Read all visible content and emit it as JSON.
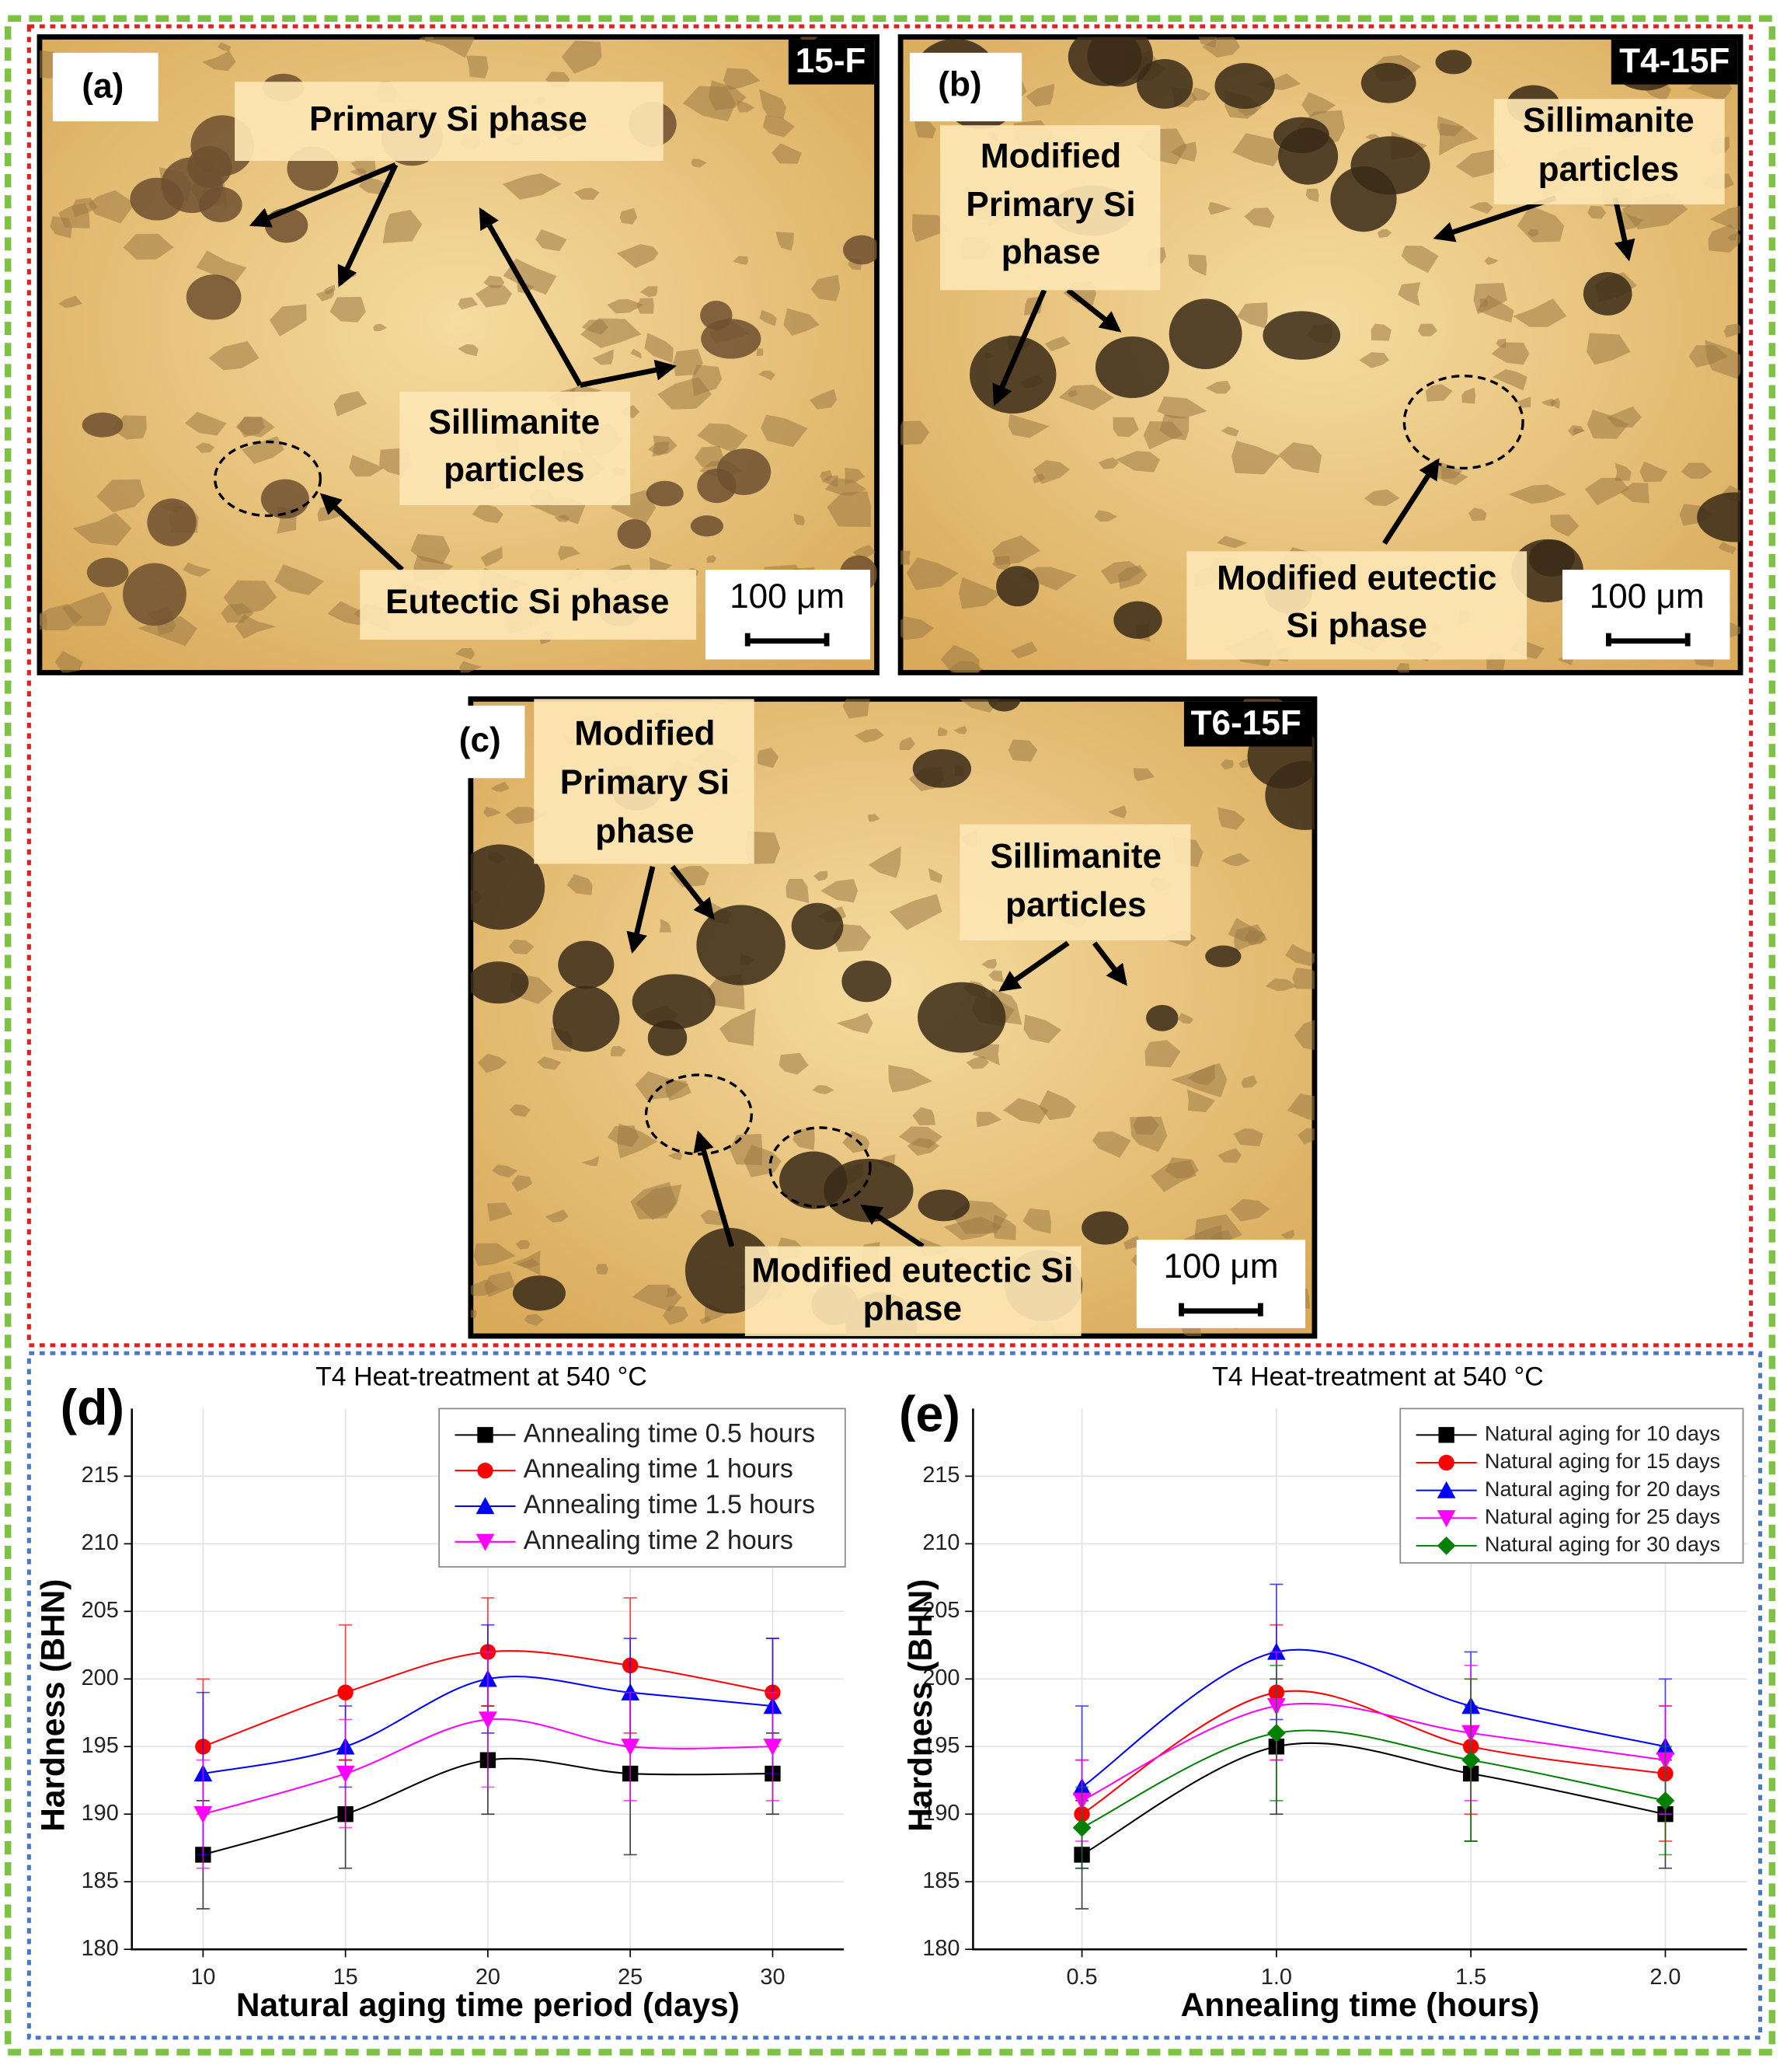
{
  "panels": [
    {
      "label": "(a)",
      "sample": "15-F",
      "annotations": [
        [
          "Primary Si phase"
        ],
        [
          "Sillimanite",
          "particles"
        ],
        [
          "Eutectic Si phase"
        ]
      ],
      "scale_bar": "100 μm"
    },
    {
      "label": "(b)",
      "sample": "T4-15F",
      "annotations": [
        [
          "Modified",
          "Primary Si",
          "phase"
        ],
        [
          "Sillimanite",
          "particles"
        ],
        [
          "Modified eutectic",
          "Si phase"
        ]
      ],
      "scale_bar": "100 μm"
    },
    {
      "label": "(c)",
      "sample": "T6-15F",
      "annotations": [
        [
          "Modified",
          "Primary Si",
          "phase"
        ],
        [
          "Sillimanite",
          "particles"
        ],
        [
          "Modified eutectic Si",
          "phase"
        ]
      ],
      "scale_bar": "100 μm"
    }
  ],
  "chart_data": [
    {
      "type": "line",
      "panel_label": "(d)",
      "title": "T4 Heat-treatment at 540 °C",
      "xlabel": "Natural aging time period (days)",
      "ylabel": "Hardness (BHN)",
      "x": [
        10,
        15,
        20,
        25,
        30
      ],
      "xlim": [
        7.5,
        32.5
      ],
      "xticks": [
        10,
        15,
        20,
        25,
        30
      ],
      "ylim": [
        180,
        220
      ],
      "yticks": [
        180,
        185,
        190,
        195,
        200,
        205,
        210,
        215
      ],
      "grid": true,
      "legend": "upper right",
      "series": [
        {
          "name": "Annealing time 0.5 hours",
          "color": "#000000",
          "marker": "square",
          "values": [
            187,
            190,
            194,
            193,
            193
          ],
          "errors": [
            4,
            4,
            4,
            6,
            3
          ]
        },
        {
          "name": "Annealing time 1 hours",
          "color": "#ff0000",
          "marker": "circle",
          "values": [
            195,
            199,
            202,
            201,
            199
          ],
          "errors": [
            5,
            5,
            4,
            5,
            4
          ]
        },
        {
          "name": "Annealing time 1.5 hours",
          "color": "#0000ff",
          "marker": "triangle-up",
          "values": [
            193,
            195,
            200,
            199,
            198
          ],
          "errors": [
            6,
            3,
            4,
            4,
            5
          ]
        },
        {
          "name": "Annealing time 2 hours",
          "color": "#ff00ff",
          "marker": "triangle-down",
          "values": [
            190,
            193,
            197,
            195,
            195
          ],
          "errors": [
            4,
            4,
            5,
            4,
            4
          ]
        }
      ]
    },
    {
      "type": "line",
      "panel_label": "(e)",
      "title": "T4 Heat-treatment at 540 °C",
      "xlabel": "Annealing time (hours)",
      "ylabel": "Hardness (BHN)",
      "x": [
        0.5,
        1,
        1.5,
        2
      ],
      "xlim": [
        0.22,
        2.21
      ],
      "xticks": [
        0.5,
        {
          "value": 1,
          "label": "1.0"
        },
        1.5,
        {
          "value": 2,
          "label": "2.0"
        }
      ],
      "ylim": [
        180,
        220
      ],
      "yticks": [
        180,
        185,
        190,
        195,
        200,
        205,
        210,
        215
      ],
      "grid": true,
      "legend": "upper right",
      "series": [
        {
          "name": "Natural aging for 10 days",
          "color": "#000000",
          "marker": "square",
          "values": [
            187,
            195,
            193,
            190
          ],
          "errors": [
            4,
            5,
            5,
            4
          ]
        },
        {
          "name": "Natural aging for 15 days",
          "color": "#ff0000",
          "marker": "circle",
          "values": [
            190,
            199,
            195,
            193
          ],
          "errors": [
            4,
            5,
            5,
            5
          ]
        },
        {
          "name": "Natural aging for 20 days",
          "color": "#0000ff",
          "marker": "triangle-up",
          "values": [
            192,
            202,
            198,
            195
          ],
          "errors": [
            6,
            5,
            4,
            5
          ]
        },
        {
          "name": "Natural aging for 25 days",
          "color": "#ff00ff",
          "marker": "triangle-down",
          "values": [
            191,
            198,
            196,
            194
          ],
          "errors": [
            3,
            4,
            5,
            4
          ]
        },
        {
          "name": "Natural aging for 30 days",
          "color": "#008000",
          "marker": "diamond",
          "values": [
            189,
            196,
            194,
            191
          ],
          "errors": [
            3,
            5,
            6,
            4
          ]
        }
      ]
    }
  ]
}
